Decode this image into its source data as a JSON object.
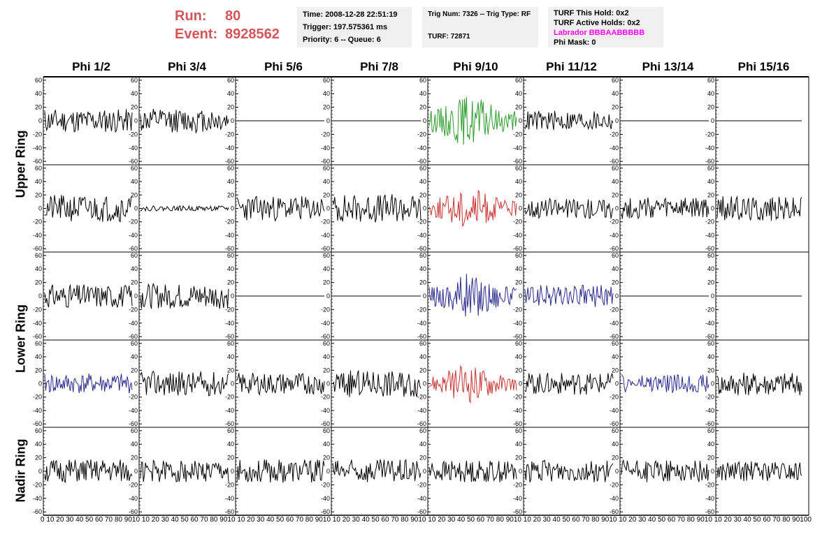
{
  "run": {
    "run_label": "Run:",
    "run_value": "80",
    "event_label": "Event:",
    "event_value": "8928562"
  },
  "info1": {
    "time": "Time: 2008-12-28 22:51:19",
    "trigger": "Trigger: 197.575361 ms",
    "priority": "Priority: 6 -- Queue: 6"
  },
  "info2": {
    "trig": "Trig Num: 7326 -- Trig Type: RF",
    "turf": "TURF: 72871"
  },
  "info3": {
    "hold": "TURF This Hold: 0x2",
    "active": "TURF Active Holds: 0x2",
    "labrador": "Labrador BBBAABBBBB",
    "mask": "Phi Mask: 0"
  },
  "phi_labels": [
    "Phi 1/2",
    "Phi 3/4",
    "Phi 5/6",
    "Phi 7/8",
    "Phi 9/10",
    "Phi 11/12",
    "Phi 13/14",
    "Phi 15/16"
  ],
  "ring_labels": {
    "upper": "Upper Ring",
    "lower": "Lower Ring",
    "nadir": "Nadir Ring"
  },
  "colors": {
    "black": "#000000",
    "green": "#2e9a2e",
    "red": "#c83232",
    "blue": "#2a2a8c",
    "run_text": "#d4555a",
    "labrador": "#ff00ff"
  },
  "chart_data": {
    "type": "line",
    "ylim": [
      -65,
      65
    ],
    "yticks": [
      -60,
      -40,
      -20,
      0,
      20,
      40,
      60
    ],
    "xlim": [
      0,
      100
    ],
    "xticks": [
      0,
      10,
      20,
      30,
      40,
      50,
      60,
      70,
      80,
      90,
      100
    ],
    "x_tick_labels": [
      "0",
      "10",
      "20",
      "30",
      "40",
      "50",
      "60",
      "70",
      "80",
      "90",
      "100"
    ],
    "x_axis_text": "0 10 20 30 40 50 60 70 80 9010 10 20 30 40 50 60 70 80 9010 10 20 30 40 50 60 70 80 9010 10 20 30 40 50 60 70 80 9010 10 20 30 40 50 60 70 80 9010 10 20 30 40 50 60 70 80 9010 10 20 30 40 50 60 70 80 9010 10 20 30 40 50 60 70 80 90100",
    "samples_per_trace": 90,
    "rows": [
      {
        "ring": "upper",
        "cells": [
          {
            "color": "black",
            "amp": 14,
            "seed": 11
          },
          {
            "color": "black",
            "amp": 14,
            "seed": 12
          },
          {
            "color": "black",
            "amp": 0,
            "seed": 13
          },
          {
            "color": "black",
            "amp": 0,
            "seed": 14
          },
          {
            "color": "green",
            "amp": 24,
            "seed": 15,
            "envelope": true
          },
          {
            "color": "black",
            "amp": 12,
            "seed": 16
          },
          {
            "color": "black",
            "amp": 0,
            "seed": 17
          },
          {
            "color": "black",
            "amp": 0,
            "seed": 18
          }
        ]
      },
      {
        "ring": "upper",
        "cells": [
          {
            "color": "black",
            "amp": 16,
            "seed": 21
          },
          {
            "color": "black",
            "amp": 3,
            "seed": 22
          },
          {
            "color": "black",
            "amp": 15,
            "seed": 23
          },
          {
            "color": "black",
            "amp": 17,
            "seed": 24
          },
          {
            "color": "red",
            "amp": 20,
            "seed": 25,
            "envelope": true
          },
          {
            "color": "black",
            "amp": 12,
            "seed": 26
          },
          {
            "color": "black",
            "amp": 13,
            "seed": 27
          },
          {
            "color": "black",
            "amp": 15,
            "seed": 28
          }
        ]
      },
      {
        "ring": "lower",
        "cells": [
          {
            "color": "black",
            "amp": 14,
            "seed": 31
          },
          {
            "color": "black",
            "amp": 15,
            "seed": 32
          },
          {
            "color": "black",
            "amp": 0,
            "seed": 33
          },
          {
            "color": "black",
            "amp": 0,
            "seed": 34
          },
          {
            "color": "blue",
            "amp": 22,
            "seed": 35,
            "envelope": true
          },
          {
            "color": "blue",
            "amp": 13,
            "seed": 36
          },
          {
            "color": "black",
            "amp": 0,
            "seed": 37
          },
          {
            "color": "black",
            "amp": 0,
            "seed": 38
          }
        ]
      },
      {
        "ring": "lower",
        "cells": [
          {
            "color": "blue",
            "amp": 12,
            "seed": 41
          },
          {
            "color": "black",
            "amp": 15,
            "seed": 42
          },
          {
            "color": "black",
            "amp": 13,
            "seed": 43
          },
          {
            "color": "black",
            "amp": 16,
            "seed": 44
          },
          {
            "color": "red",
            "amp": 18,
            "seed": 45,
            "envelope": true
          },
          {
            "color": "black",
            "amp": 13,
            "seed": 46
          },
          {
            "color": "blue",
            "amp": 11,
            "seed": 47
          },
          {
            "color": "black",
            "amp": 14,
            "seed": 48
          }
        ]
      },
      {
        "ring": "nadir",
        "cells": [
          {
            "color": "black",
            "amp": 14,
            "seed": 51
          },
          {
            "color": "black",
            "amp": 13,
            "seed": 52
          },
          {
            "color": "black",
            "amp": 14,
            "seed": 53
          },
          {
            "color": "black",
            "amp": 14,
            "seed": 54
          },
          {
            "color": "black",
            "amp": 13,
            "seed": 55
          },
          {
            "color": "black",
            "amp": 13,
            "seed": 56
          },
          {
            "color": "black",
            "amp": 13,
            "seed": 57
          },
          {
            "color": "black",
            "amp": 12,
            "seed": 58
          }
        ]
      }
    ]
  }
}
